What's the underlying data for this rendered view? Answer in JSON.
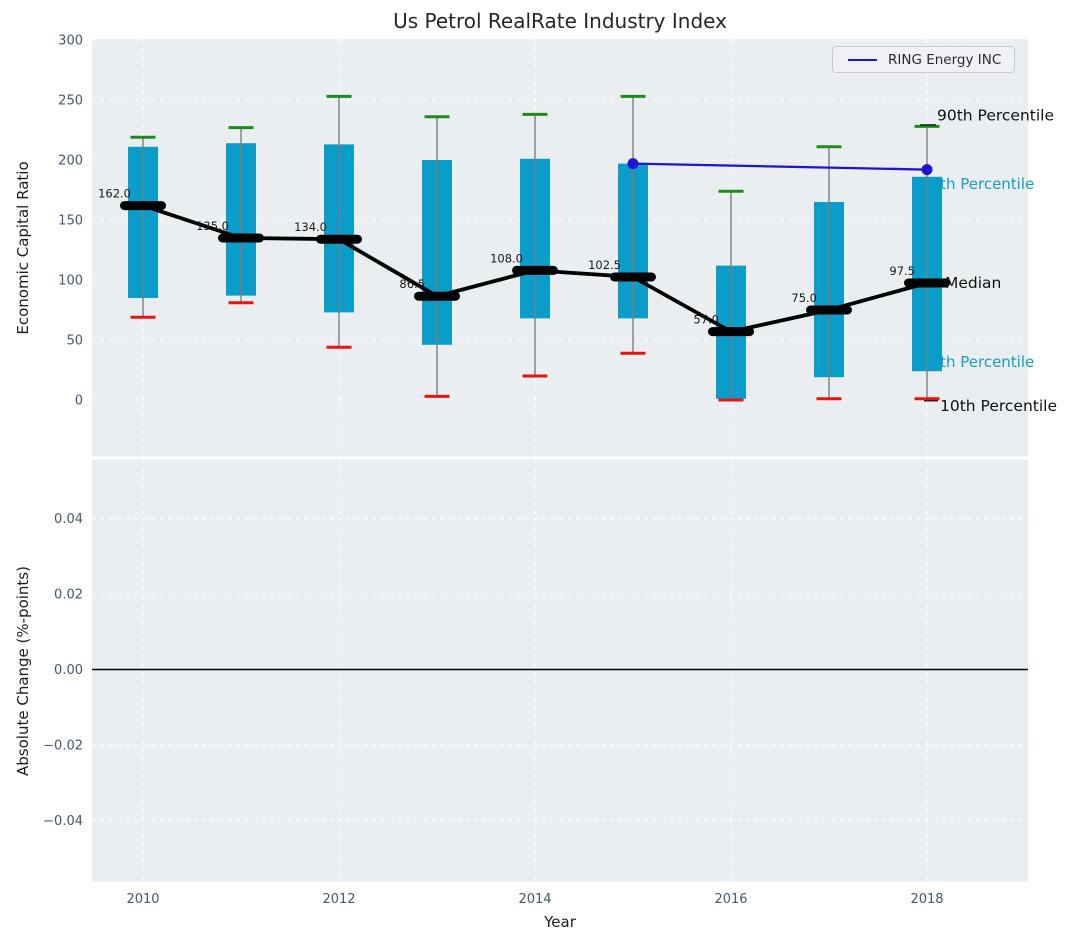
{
  "title": "Us Petrol RealRate Industry Index",
  "xlabel": "Year",
  "top_plot": {
    "ylabel": "Economic Capital Ratio",
    "yticks": [
      300,
      250,
      200,
      150,
      100,
      50,
      0
    ],
    "legend": {
      "label": "RING Energy INC"
    },
    "annotations": {
      "p90_label": "90th Percentile",
      "p75_label": "75th Percentile",
      "median_label": "Median",
      "p25_label": "25th Percentile",
      "p10_label": "10th Percentile"
    }
  },
  "bottom_plot": {
    "ylabel": "Absolute Change (%-points)",
    "yticks": [
      {
        "label": "0.04",
        "v": 0.04
      },
      {
        "label": "0.02",
        "v": 0.02
      },
      {
        "label": "0.00",
        "v": 0.0
      },
      {
        "label": "−0.02",
        "v": -0.02
      },
      {
        "label": "−0.04",
        "v": -0.04
      }
    ],
    "zero_line": 0.0
  },
  "xticks": [
    {
      "label": "2010",
      "year": 2010
    },
    {
      "label": "2012",
      "year": 2012
    },
    {
      "label": "2014",
      "year": 2014
    },
    {
      "label": "2016",
      "year": 2016
    },
    {
      "label": "2018",
      "year": 2018
    }
  ],
  "colors": {
    "axes_bg": "#eaeef0",
    "grid": "#ffffff",
    "box_fill": "#0b9dc9",
    "whisker": "#7d7d7d",
    "cap_top": "#1f8b1f",
    "cap_bottom": "#e81414",
    "median": "#000000",
    "company_line": "#1c16d2",
    "tick_label": "#46566c",
    "cyan_label": "#169dc9",
    "black_label": "#111111"
  },
  "chart_data": [
    {
      "type": "boxplot",
      "title": "Us Petrol RealRate Industry Index",
      "ylabel": "Economic Capital Ratio",
      "xlabel": "Year",
      "ylim": [
        -47.5,
        300.8
      ],
      "xlim": [
        2009.5,
        2019.05
      ],
      "grid": true,
      "legend_position": "upper right",
      "years": [
        2010,
        2011,
        2012,
        2013,
        2014,
        2015,
        2016,
        2017,
        2018
      ],
      "median": [
        162.0,
        135.0,
        134.0,
        86.5,
        108.0,
        102.5,
        57.0,
        75.0,
        97.5
      ],
      "median_labels": [
        "162.0",
        "135.0",
        "134.0",
        "86.5",
        "108.0",
        "102.5",
        "57.0",
        "75.0",
        "97.5"
      ],
      "p75": [
        211,
        214,
        213,
        200,
        201,
        197,
        112,
        165,
        186
      ],
      "p25": [
        85,
        87,
        73,
        46,
        68,
        68,
        1,
        19,
        24
      ],
      "p90": [
        219,
        227,
        253,
        236,
        238,
        253,
        174,
        211,
        228
      ],
      "p10": [
        69,
        81,
        44,
        3,
        20,
        39,
        0,
        1,
        1
      ],
      "series": [
        {
          "name": "RING Energy INC",
          "x": [
            2015,
            2018
          ],
          "y": [
            197,
            192
          ]
        }
      ]
    },
    {
      "type": "line",
      "ylabel": "Absolute Change (%-points)",
      "ylim": [
        -0.056,
        0.056
      ],
      "xlim": [
        2009.5,
        2019.05
      ],
      "grid": true,
      "series": [],
      "zero_line": 0.0
    }
  ]
}
